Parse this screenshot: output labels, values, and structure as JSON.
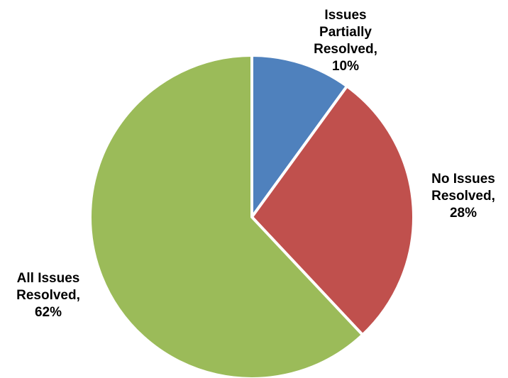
{
  "chart_data": {
    "type": "pie",
    "title": "",
    "slices": [
      {
        "label": "Issues Partially Resolved",
        "value": 10,
        "display_lines": [
          "Issues",
          "Partially",
          "Resolved,",
          "10%"
        ],
        "color": "#4F81BD"
      },
      {
        "label": "No Issues Resolved",
        "value": 28,
        "display_lines": [
          "No Issues",
          "Resolved,",
          "28%"
        ],
        "color": "#C0504D"
      },
      {
        "label": "All Issues Resolved",
        "value": 62,
        "display_lines": [
          "All Issues",
          "Resolved,",
          "62%"
        ],
        "color": "#9BBB59"
      }
    ],
    "start_angle": "12 o'clock",
    "direction": "clockwise",
    "legend": "none",
    "data_labels": "outside"
  }
}
